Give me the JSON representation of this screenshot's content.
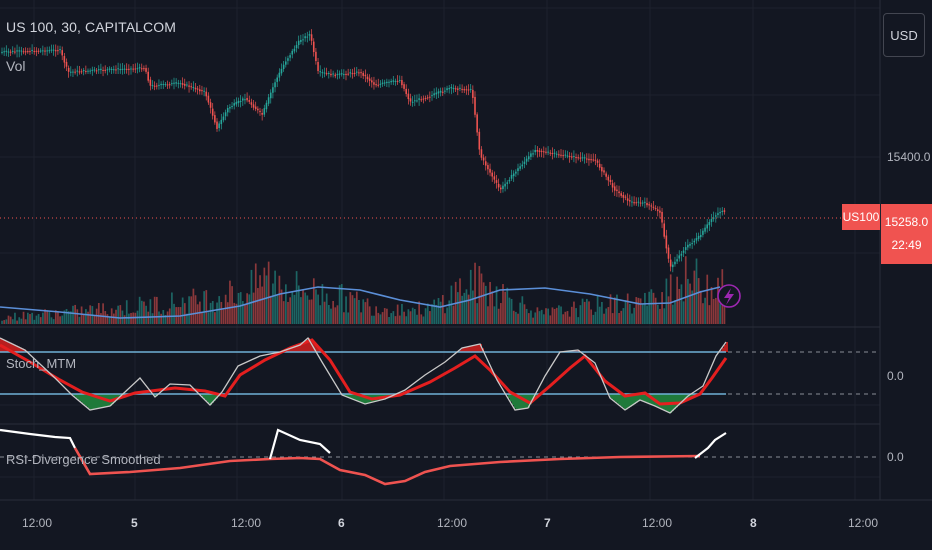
{
  "header": {
    "symbol_line": "US 100, 30, CAPITALCOM",
    "volume_label": "Vol"
  },
  "currency_button": "USD",
  "price_axis": {
    "level_label": "15400.0",
    "last_symbol": "US100",
    "last_price": "15258.0",
    "countdown": "22:49"
  },
  "panes": [
    {
      "name": "Stoch_MTM",
      "zero_label": "0.0"
    },
    {
      "name": "RSI-Divergence Smoothed",
      "zero_label": "0.0"
    }
  ],
  "time_axis": [
    "12:00",
    "5",
    "12:00",
    "6",
    "12:00",
    "7",
    "12:00",
    "8",
    "12:00"
  ],
  "alert_icon": "lightning-icon",
  "colors": {
    "background": "#131722",
    "up": "#26a69a",
    "down": "#ef5350",
    "volume_ma": "#5b8fd8",
    "stoch_fast": "#c9c9c9",
    "stoch_slow": "#e41f1f",
    "oversold_fill": "#1f7a3a",
    "overbought_fill": "#c21f1f",
    "level_line": "#6fb1d6",
    "rsi_up": "#ffffff",
    "rsi_down": "#ef5350"
  }
}
